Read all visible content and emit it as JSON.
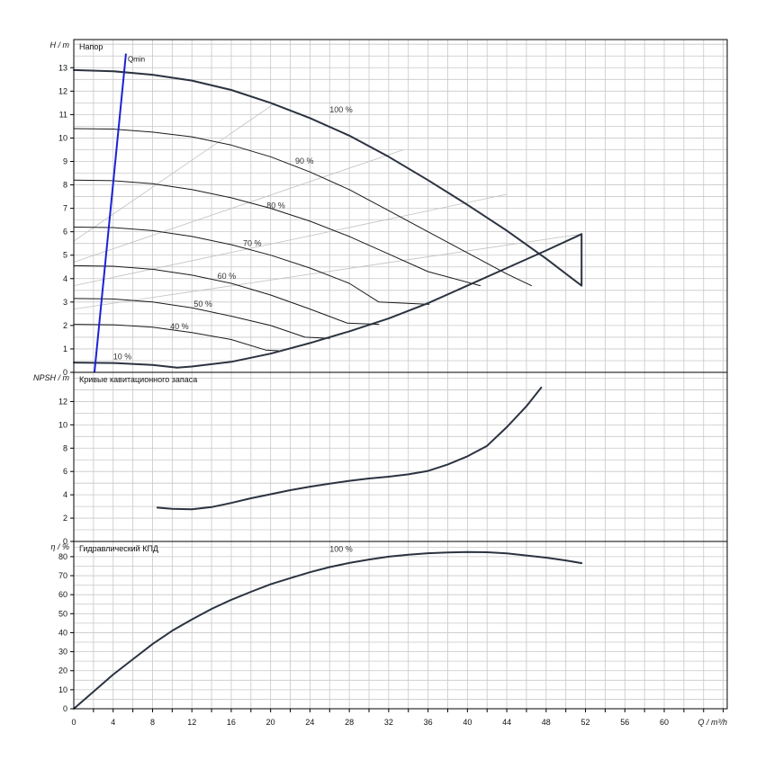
{
  "colors": {
    "grid": "#c8c8c8",
    "axis": "#000000",
    "curve": "#2b3340",
    "curve_thin": "#1a1a1a",
    "qmin": "#1a22d6",
    "helper_lines": "#c0c0c0"
  },
  "x_axis": {
    "label": "Q / m³/h",
    "ticks": [
      "0",
      "4",
      "8",
      "12",
      "16",
      "20",
      "24",
      "28",
      "32",
      "36",
      "40",
      "44",
      "48",
      "52",
      "56",
      "60"
    ]
  },
  "chart_data": [
    {
      "type": "line",
      "panel": "head",
      "title": "Напор",
      "ylabel": "H / m",
      "xlim": [
        0,
        66.4
      ],
      "ylim": [
        0,
        14.2
      ],
      "y_ticks": [
        "0",
        "1",
        "2",
        "3",
        "4",
        "5",
        "6",
        "7",
        "8",
        "9",
        "10",
        "11",
        "12",
        "13"
      ],
      "grid": true,
      "series": [
        {
          "name": "100 %",
          "label_at": [
            26,
            11.1
          ],
          "points": [
            [
              0,
              12.9
            ],
            [
              4,
              12.85
            ],
            [
              8,
              12.7
            ],
            [
              12,
              12.45
            ],
            [
              16,
              12.05
            ],
            [
              20,
              11.5
            ],
            [
              24,
              10.85
            ],
            [
              28,
              10.1
            ],
            [
              32,
              9.2
            ],
            [
              36,
              8.2
            ],
            [
              40,
              7.15
            ],
            [
              44,
              6.05
            ],
            [
              48,
              4.85
            ],
            [
              51.6,
              3.7
            ],
            [
              51.6,
              5.9
            ]
          ]
        },
        {
          "name": "90 %",
          "label_at": [
            22.5,
            8.9
          ],
          "points": [
            [
              0,
              10.4
            ],
            [
              4,
              10.38
            ],
            [
              8,
              10.25
            ],
            [
              12,
              10.05
            ],
            [
              16,
              9.7
            ],
            [
              20,
              9.2
            ],
            [
              24,
              8.55
            ],
            [
              28,
              7.8
            ],
            [
              32,
              6.9
            ],
            [
              36,
              6.0
            ],
            [
              40,
              5.1
            ],
            [
              44,
              4.2
            ],
            [
              46.5,
              3.7
            ]
          ]
        },
        {
          "name": "80 %",
          "label_at": [
            19.6,
            7.0
          ],
          "points": [
            [
              0,
              8.2
            ],
            [
              4,
              8.18
            ],
            [
              8,
              8.05
            ],
            [
              12,
              7.8
            ],
            [
              16,
              7.45
            ],
            [
              20,
              7.0
            ],
            [
              24,
              6.45
            ],
            [
              28,
              5.8
            ],
            [
              32,
              5.05
            ],
            [
              36,
              4.3
            ],
            [
              41.3,
              3.7
            ]
          ]
        },
        {
          "name": "70 %",
          "label_at": [
            17.2,
            5.4
          ],
          "points": [
            [
              0,
              6.2
            ],
            [
              4,
              6.18
            ],
            [
              8,
              6.05
            ],
            [
              12,
              5.8
            ],
            [
              16,
              5.45
            ],
            [
              20,
              5.0
            ],
            [
              24,
              4.45
            ],
            [
              28,
              3.8
            ],
            [
              31.0,
              3.0
            ],
            [
              36.1,
              2.9
            ]
          ]
        },
        {
          "name": "60 %",
          "label_at": [
            14.6,
            4.0
          ],
          "points": [
            [
              0,
              4.55
            ],
            [
              4,
              4.53
            ],
            [
              8,
              4.4
            ],
            [
              12,
              4.15
            ],
            [
              16,
              3.8
            ],
            [
              20,
              3.3
            ],
            [
              24,
              2.7
            ],
            [
              27.8,
              2.1
            ],
            [
              31.0,
              2.05
            ]
          ]
        },
        {
          "name": "50 %",
          "label_at": [
            12.2,
            2.8
          ],
          "points": [
            [
              0,
              3.15
            ],
            [
              4,
              3.13
            ],
            [
              8,
              3.0
            ],
            [
              12,
              2.75
            ],
            [
              16,
              2.4
            ],
            [
              20,
              2.0
            ],
            [
              23.5,
              1.5
            ],
            [
              26.0,
              1.45
            ]
          ]
        },
        {
          "name": "40 %",
          "label_at": [
            9.8,
            1.85
          ],
          "points": [
            [
              0,
              2.05
            ],
            [
              4,
              2.03
            ],
            [
              8,
              1.93
            ],
            [
              12,
              1.7
            ],
            [
              16,
              1.4
            ],
            [
              19.5,
              0.95
            ],
            [
              20.8,
              0.92
            ]
          ]
        },
        {
          "name": "10 %",
          "label_at": [
            4.0,
            0.55
          ],
          "points": [
            [
              0,
              0.42
            ],
            [
              4,
              0.4
            ],
            [
              8,
              0.32
            ],
            [
              10.5,
              0.2
            ],
            [
              12,
              0.25
            ],
            [
              16,
              0.45
            ],
            [
              20,
              0.8
            ],
            [
              24,
              1.25
            ],
            [
              28,
              1.75
            ],
            [
              32,
              2.3
            ],
            [
              36,
              2.95
            ],
            [
              40,
              3.7
            ],
            [
              44,
              4.45
            ],
            [
              48,
              5.2
            ],
            [
              51.6,
              5.9
            ]
          ]
        }
      ],
      "qmin": {
        "name": "Qmin",
        "x_top": 5.3,
        "y_top": 13.6,
        "x_bottom": 2.1,
        "y_bottom": 0
      },
      "helper_lines": [
        [
          [
            0,
            5.6
          ],
          [
            20.5,
            11.5
          ]
        ],
        [
          [
            0,
            4.7
          ],
          [
            33.5,
            9.5
          ]
        ],
        [
          [
            0,
            3.7
          ],
          [
            44,
            7.6
          ]
        ],
        [
          [
            0,
            2.7
          ],
          [
            51.6,
            5.9
          ]
        ]
      ]
    },
    {
      "type": "line",
      "panel": "npsh",
      "title": "Кривые кавитационного запаса",
      "ylabel": "NPSH / m",
      "xlim": [
        0,
        66.4
      ],
      "ylim": [
        0,
        14.5
      ],
      "y_ticks": [
        "0",
        "2",
        "4",
        "6",
        "8",
        "10",
        "12"
      ],
      "grid": true,
      "series": [
        {
          "name": "",
          "points": [
            [
              8.5,
              2.9
            ],
            [
              10,
              2.8
            ],
            [
              12,
              2.75
            ],
            [
              14,
              2.95
            ],
            [
              16,
              3.3
            ],
            [
              18,
              3.7
            ],
            [
              20,
              4.05
            ],
            [
              22,
              4.4
            ],
            [
              24,
              4.7
            ],
            [
              26,
              4.95
            ],
            [
              28,
              5.2
            ],
            [
              30,
              5.4
            ],
            [
              32,
              5.55
            ],
            [
              34,
              5.75
            ],
            [
              36,
              6.05
            ],
            [
              38,
              6.6
            ],
            [
              40,
              7.3
            ],
            [
              42,
              8.2
            ],
            [
              44,
              9.8
            ],
            [
              46,
              11.6
            ],
            [
              47.5,
              13.2
            ]
          ]
        }
      ]
    },
    {
      "type": "line",
      "panel": "efficiency",
      "title": "Гидравлический КПД",
      "ylabel": "η / %",
      "xlim": [
        0,
        66.4
      ],
      "ylim": [
        0,
        88
      ],
      "y_ticks": [
        "0",
        "10",
        "20",
        "30",
        "40",
        "50",
        "60",
        "70",
        "80"
      ],
      "grid": true,
      "series": [
        {
          "name": "100 %",
          "label_at": [
            26,
            82.5
          ],
          "points": [
            [
              0,
              0
            ],
            [
              2,
              9
            ],
            [
              4,
              18
            ],
            [
              6,
              26
            ],
            [
              8,
              34
            ],
            [
              10,
              41
            ],
            [
              12,
              47
            ],
            [
              14,
              52.5
            ],
            [
              16,
              57.3
            ],
            [
              18,
              61.5
            ],
            [
              20,
              65.5
            ],
            [
              22,
              68.7
            ],
            [
              24,
              71.8
            ],
            [
              26,
              74.5
            ],
            [
              28,
              76.7
            ],
            [
              30,
              78.5
            ],
            [
              32,
              80
            ],
            [
              34,
              81
            ],
            [
              36,
              81.8
            ],
            [
              38,
              82.2
            ],
            [
              40,
              82.4
            ],
            [
              42,
              82.3
            ],
            [
              44,
              81.7
            ],
            [
              46,
              80.6
            ],
            [
              48,
              79.5
            ],
            [
              50,
              78
            ],
            [
              51.6,
              76.6
            ]
          ]
        }
      ]
    }
  ]
}
